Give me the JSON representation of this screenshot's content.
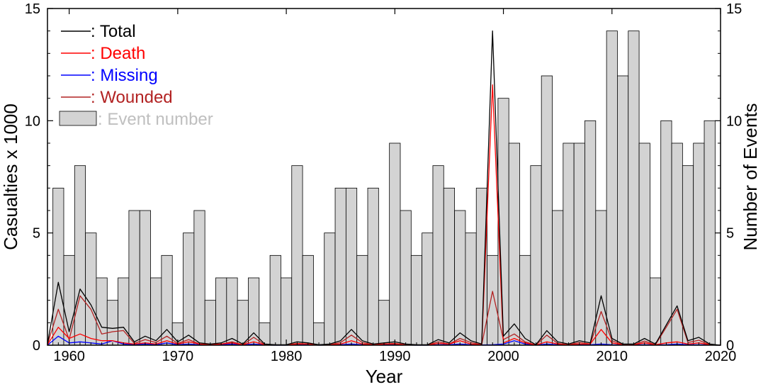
{
  "chart_data": {
    "type": "bar",
    "xlabel": "Year",
    "ylabel": "Casualties x 1000",
    "y2label": "Number of Events",
    "xlim": [
      1958,
      2020
    ],
    "ylim": [
      0,
      15
    ],
    "y2lim": [
      0,
      15
    ],
    "x_ticks": [
      1960,
      1970,
      1980,
      1990,
      2000,
      2010,
      2020
    ],
    "y_ticks": [
      0,
      5,
      10,
      15
    ],
    "y2_ticks": [
      0,
      5,
      10,
      15
    ],
    "legend_position": "top-left",
    "legend": [
      {
        "label": ": Total",
        "color": "#000000",
        "kind": "line"
      },
      {
        "label": ": Death",
        "color": "#ff0000",
        "kind": "line"
      },
      {
        "label": ": Missing",
        "color": "#0000ff",
        "kind": "line"
      },
      {
        "label": ": Wounded",
        "color": "#b22222",
        "kind": "line"
      },
      {
        "label": ": Event number",
        "color": "#bfbfbf",
        "kind": "bar"
      }
    ],
    "years": [
      1958,
      1959,
      1960,
      1961,
      1962,
      1963,
      1964,
      1965,
      1966,
      1967,
      1968,
      1969,
      1970,
      1971,
      1972,
      1973,
      1974,
      1975,
      1976,
      1977,
      1978,
      1979,
      1980,
      1981,
      1982,
      1983,
      1984,
      1985,
      1986,
      1987,
      1988,
      1989,
      1990,
      1991,
      1992,
      1993,
      1994,
      1995,
      1996,
      1997,
      1998,
      1999,
      2000,
      2001,
      2002,
      2003,
      2004,
      2005,
      2006,
      2007,
      2008,
      2009,
      2010,
      2011,
      2012,
      2013,
      2014,
      2015,
      2016,
      2017,
      2018,
      2019,
      2020
    ],
    "event_number": [
      0,
      7,
      4,
      8,
      5,
      3,
      2,
      3,
      6,
      6,
      3,
      4,
      1,
      5,
      6,
      2,
      3,
      3,
      2,
      3,
      1,
      4,
      3,
      8,
      4,
      1,
      5,
      7,
      7,
      4,
      7,
      2,
      9,
      6,
      4,
      5,
      8,
      7,
      6,
      5,
      7,
      4,
      11,
      9,
      4,
      8,
      12,
      6,
      9,
      9,
      10,
      6,
      14,
      12,
      14,
      9,
      3,
      10,
      9,
      8,
      9,
      10,
      0
    ],
    "series": [
      {
        "name": ": Total",
        "color": "#000000",
        "values": [
          0.05,
          2.8,
          0.6,
          2.5,
          1.8,
          0.8,
          0.75,
          0.8,
          0.15,
          0.4,
          0.2,
          0.7,
          0.15,
          0.45,
          0.1,
          0.05,
          0.1,
          0.3,
          0.05,
          0.55,
          0.05,
          0.02,
          0.02,
          0.15,
          0.1,
          0.02,
          0.05,
          0.2,
          0.7,
          0.2,
          0.05,
          0.1,
          0.15,
          0.05,
          0.02,
          0.02,
          0.25,
          0.1,
          0.55,
          0.2,
          0.05,
          14.0,
          0.4,
          0.95,
          0.3,
          0.02,
          0.65,
          0.15,
          0.05,
          0.2,
          0.1,
          2.2,
          0.3,
          0.05,
          0.05,
          0.3,
          0.05,
          0.9,
          1.75,
          0.2,
          0.35,
          0.05,
          0.0
        ]
      },
      {
        "name": ": Death",
        "color": "#ff0000",
        "values": [
          0.02,
          0.8,
          0.3,
          0.5,
          0.3,
          0.2,
          0.2,
          0.1,
          0.05,
          0.1,
          0.05,
          0.2,
          0.05,
          0.15,
          0.05,
          0.02,
          0.05,
          0.1,
          0.02,
          0.15,
          0.02,
          0.01,
          0.01,
          0.05,
          0.05,
          0.01,
          0.02,
          0.05,
          0.2,
          0.05,
          0.02,
          0.05,
          0.05,
          0.02,
          0.01,
          0.01,
          0.08,
          0.05,
          0.2,
          0.05,
          0.02,
          11.6,
          0.1,
          0.3,
          0.1,
          0.01,
          0.15,
          0.05,
          0.02,
          0.05,
          0.05,
          0.7,
          0.1,
          0.02,
          0.02,
          0.1,
          0.02,
          0.1,
          0.15,
          0.05,
          0.1,
          0.02,
          0.0
        ]
      },
      {
        "name": ": Missing",
        "color": "#0000ff",
        "values": [
          0.0,
          0.4,
          0.1,
          0.15,
          0.1,
          0.05,
          0.2,
          0.05,
          0.02,
          0.05,
          0.02,
          0.1,
          0.02,
          0.05,
          0.02,
          0.01,
          0.02,
          0.05,
          0.01,
          0.05,
          0.01,
          0.0,
          0.0,
          0.02,
          0.02,
          0.0,
          0.01,
          0.02,
          0.05,
          0.02,
          0.01,
          0.02,
          0.02,
          0.01,
          0.0,
          0.0,
          0.02,
          0.02,
          0.05,
          0.02,
          0.01,
          0.02,
          0.05,
          0.2,
          0.05,
          0.0,
          0.05,
          0.02,
          0.01,
          0.02,
          0.02,
          0.05,
          0.02,
          0.01,
          0.01,
          0.02,
          0.01,
          0.02,
          0.05,
          0.02,
          0.02,
          0.01,
          0.0
        ]
      },
      {
        "name": ": Wounded",
        "color": "#b22222",
        "values": [
          0.03,
          1.6,
          0.25,
          2.2,
          1.6,
          0.5,
          0.6,
          0.65,
          0.08,
          0.25,
          0.12,
          0.4,
          0.08,
          0.25,
          0.05,
          0.02,
          0.05,
          0.15,
          0.02,
          0.35,
          0.02,
          0.01,
          0.01,
          0.08,
          0.05,
          0.01,
          0.02,
          0.12,
          0.45,
          0.12,
          0.02,
          0.05,
          0.08,
          0.02,
          0.01,
          0.01,
          0.15,
          0.05,
          0.3,
          0.12,
          0.02,
          2.4,
          0.25,
          0.5,
          0.15,
          0.01,
          0.45,
          0.08,
          0.02,
          0.12,
          0.05,
          1.5,
          0.2,
          0.02,
          0.02,
          0.18,
          0.02,
          0.8,
          1.6,
          0.12,
          0.22,
          0.02,
          0.0
        ]
      }
    ]
  }
}
